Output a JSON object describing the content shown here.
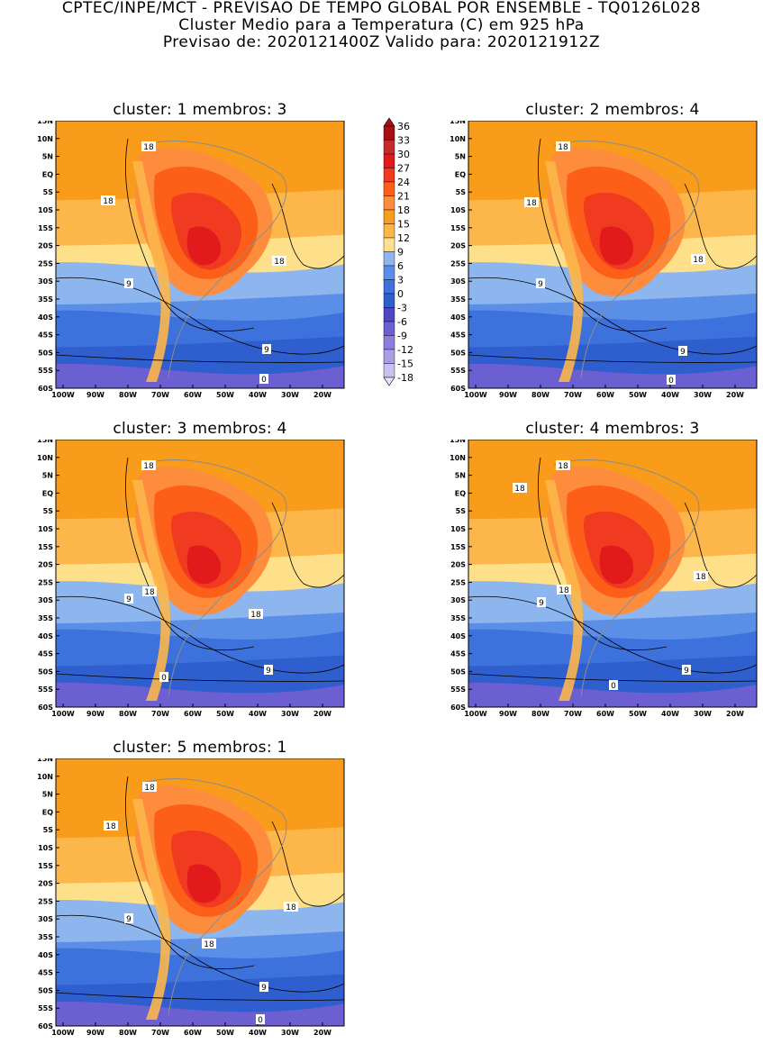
{
  "header": {
    "line1": "CPTEC/INPE/MCT - PREVISAO DE TEMPO GLOBAL POR ENSEMBLE - TQ0126L028",
    "line2": "Cluster Medio para a Temperatura (C) em 925 hPa",
    "line3": "Previsao de: 2020121400Z   Valido para: 2020121912Z"
  },
  "axes": {
    "lat_labels": [
      "15N",
      "10N",
      "5N",
      "EQ",
      "5S",
      "10S",
      "15S",
      "20S",
      "25S",
      "30S",
      "35S",
      "40S",
      "45S",
      "50S",
      "55S",
      "60S"
    ],
    "lon_labels": [
      "100W",
      "90W",
      "80W",
      "70W",
      "60W",
      "50W",
      "40W",
      "30W",
      "20W"
    ]
  },
  "colorbar": {
    "labels": [
      "36",
      "33",
      "30",
      "27",
      "24",
      "21",
      "18",
      "15",
      "12",
      "9",
      "6",
      "3",
      "0",
      "-3",
      "-6",
      "-9",
      "-12",
      "-15",
      "-18"
    ],
    "colors": [
      "#a50f15",
      "#c8282e",
      "#e31a1c",
      "#f03b20",
      "#fd5f18",
      "#fd8d3c",
      "#f99b1b",
      "#fdb64a",
      "#fee08b",
      "#8db5ee",
      "#5b8ee6",
      "#3d72dc",
      "#2f5fcf",
      "#4f46c4",
      "#6b5fd1",
      "#8a7fdc",
      "#a99de6",
      "#c9c0f0",
      "#e6e0f8"
    ]
  },
  "panels": [
    {
      "title": "cluster: 1   membros: 3",
      "labels": [
        "18",
        "18",
        "18",
        "9",
        "9",
        "0"
      ]
    },
    {
      "title": "cluster: 2   membros: 4",
      "labels": [
        "18",
        "18",
        "18",
        "9",
        "9",
        "0"
      ]
    },
    {
      "title": "cluster: 3   membros: 4",
      "labels": [
        "18",
        "18",
        "18",
        "9",
        "9",
        "0"
      ]
    },
    {
      "title": "cluster: 4   membros: 3",
      "labels": [
        "18",
        "18",
        "18",
        "18",
        "9",
        "9",
        "0"
      ]
    },
    {
      "title": "cluster: 5   membros: 1",
      "labels": [
        "18",
        "18",
        "18",
        "18",
        "9",
        "9",
        "0"
      ]
    }
  ]
}
